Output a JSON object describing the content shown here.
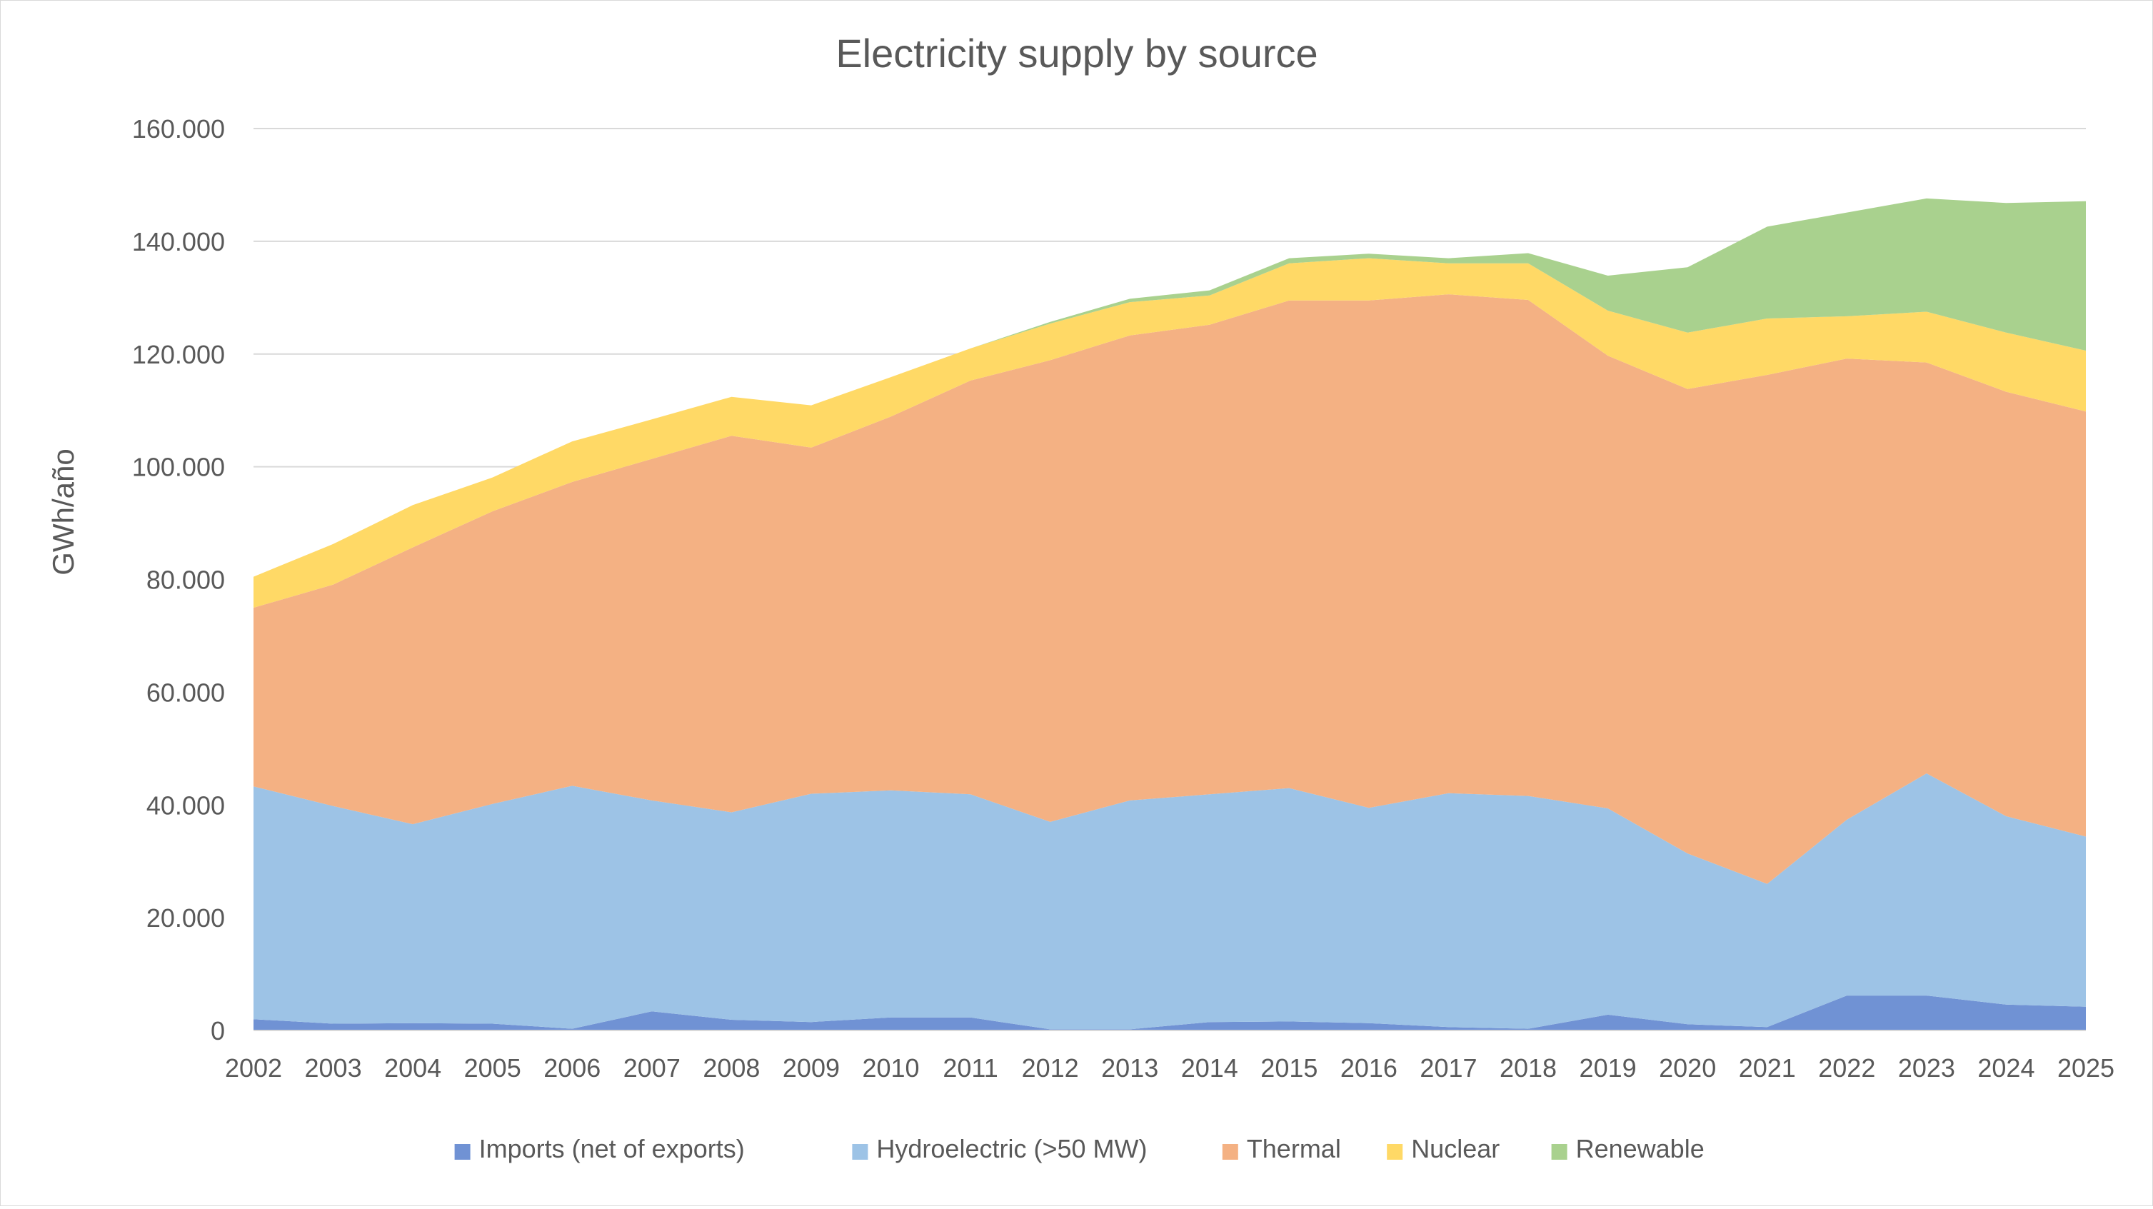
{
  "chart_data": {
    "type": "area",
    "stacked": true,
    "title": "Electricity supply by source",
    "ylabel": "GWh/año",
    "xlabel": "",
    "ylim": [
      0,
      160000
    ],
    "y_ticks": [
      0,
      20000,
      40000,
      60000,
      80000,
      100000,
      120000,
      140000,
      160000
    ],
    "y_tick_labels": [
      "0",
      "20.000",
      "40.000",
      "60.000",
      "80.000",
      "100.000",
      "120.000",
      "140.000",
      "160.000"
    ],
    "grid": true,
    "legend_position": "bottom",
    "x": [
      "2002",
      "2003",
      "2004",
      "2005",
      "2006",
      "2007",
      "2008",
      "2009",
      "2010",
      "2011",
      "2012",
      "2013",
      "2014",
      "2015",
      "2016",
      "2017",
      "2018",
      "2019",
      "2020",
      "2021",
      "2022",
      "2023",
      "2024",
      "2025"
    ],
    "series": [
      {
        "name": "Imports (net of exports)",
        "color": "#7092d4",
        "values": [
          2000,
          1200,
          1300,
          1200,
          300,
          3400,
          1900,
          1500,
          2300,
          2300,
          200,
          200,
          1500,
          1600,
          1300,
          600,
          300,
          2800,
          1100,
          600,
          6200,
          6200,
          4600,
          4200
        ]
      },
      {
        "name": "Hydroelectric (>50 MW)",
        "color": "#9dc3e6",
        "values": [
          41300,
          38600,
          35300,
          39000,
          43100,
          37400,
          36800,
          40500,
          40300,
          39600,
          36800,
          40600,
          40400,
          41400,
          38200,
          41500,
          41300,
          36600,
          30300,
          25400,
          31200,
          39400,
          33400,
          30200
        ]
      },
      {
        "name": "Thermal",
        "color": "#f4b183",
        "values": [
          31700,
          39300,
          49100,
          51900,
          53900,
          60600,
          66800,
          61400,
          66300,
          73400,
          81900,
          82500,
          83300,
          86500,
          90000,
          88500,
          88000,
          80300,
          82400,
          90300,
          81800,
          72900,
          75300,
          75400
        ]
      },
      {
        "name": "Nuclear",
        "color": "#ffd966",
        "values": [
          5500,
          7200,
          7500,
          6000,
          7200,
          7000,
          6900,
          7500,
          7000,
          5700,
          6500,
          5900,
          5200,
          6600,
          7500,
          5500,
          6500,
          8000,
          10000,
          10000,
          7500,
          9000,
          10500,
          10800
        ]
      },
      {
        "name": "Renewable",
        "color": "#a9d18e",
        "values": [
          0,
          0,
          0,
          0,
          0,
          0,
          0,
          0,
          0,
          0,
          300,
          600,
          900,
          900,
          800,
          900,
          1800,
          6200,
          11600,
          16300,
          18400,
          20100,
          23000,
          26500
        ]
      }
    ]
  }
}
